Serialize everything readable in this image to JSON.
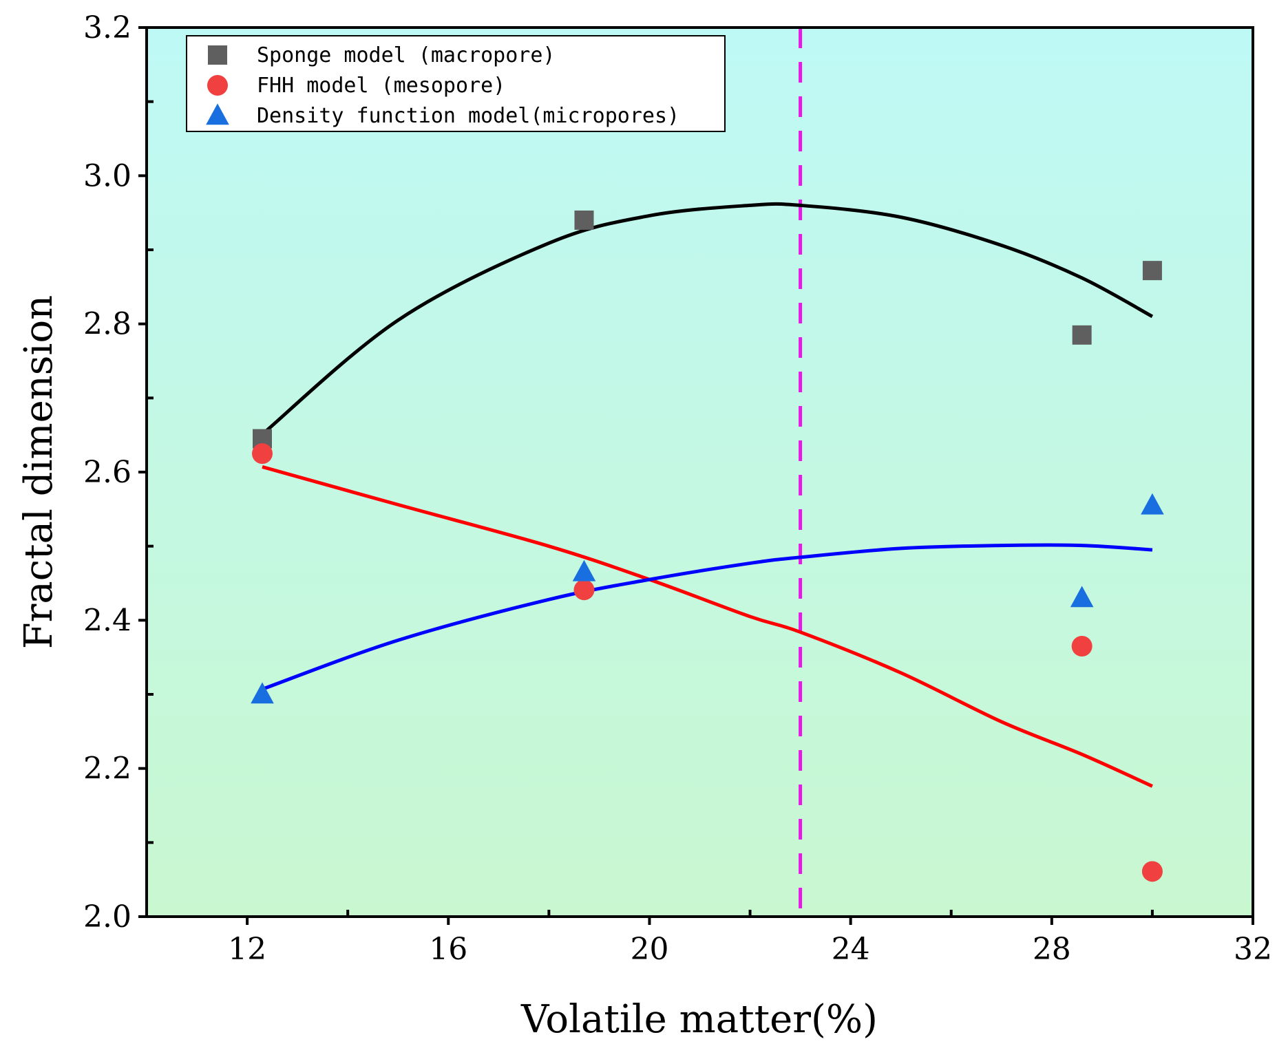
{
  "chart_data": {
    "type": "scatter",
    "title": "",
    "xlabel": "Volatile matter(%)",
    "ylabel": "Fractal dimension",
    "xlim": [
      10,
      32
    ],
    "ylim": [
      2.0,
      3.2
    ],
    "x_ticks": [
      12,
      16,
      20,
      24,
      28,
      32
    ],
    "x_tick_labels": [
      "12",
      "16",
      "20",
      "24",
      "28",
      "32"
    ],
    "x_minor_ticks": [
      14,
      18,
      22,
      26,
      30
    ],
    "y_ticks": [
      2.0,
      2.2,
      2.4,
      2.6,
      2.8,
      3.0,
      3.2
    ],
    "y_tick_labels": [
      "2.0",
      "2.2",
      "2.4",
      "2.6",
      "2.8",
      "3.0",
      "3.2"
    ],
    "y_minor_ticks": [
      2.1,
      2.3,
      2.5,
      2.7,
      2.9,
      3.1
    ],
    "grid": false,
    "legend_position": "top-left",
    "background_gradient": {
      "top": "#bff9f6",
      "bottom": "#c8f7d0"
    },
    "vline": {
      "x": 23.0,
      "color": "#e619e6",
      "style": "dashed"
    },
    "series": [
      {
        "name": "Sponge model (macropore)",
        "marker": "square",
        "marker_color": "#5f5f5f",
        "fit_color": "#000000",
        "x": [
          12.3,
          18.7,
          28.6,
          30.0
        ],
        "y": [
          2.645,
          2.94,
          2.785,
          2.872
        ],
        "fit": {
          "x": [
            12.3,
            15.0,
            18.0,
            20.0,
            22.0,
            23.0,
            25.0,
            27.0,
            28.6,
            30.0
          ],
          "y": [
            2.651,
            2.805,
            2.909,
            2.946,
            2.96,
            2.96,
            2.944,
            2.906,
            2.862,
            2.81
          ]
        }
      },
      {
        "name": "FHH model (mesopore)",
        "marker": "circle",
        "marker_color": "#f04040",
        "fit_color": "#ff0000",
        "x": [
          12.3,
          18.7,
          28.6,
          30.0
        ],
        "y": [
          2.625,
          2.441,
          2.365,
          2.061
        ],
        "fit": {
          "x": [
            12.3,
            15.0,
            18.0,
            20.0,
            22.0,
            23.0,
            25.0,
            27.0,
            28.6,
            30.0
          ],
          "y": [
            2.607,
            2.556,
            2.5,
            2.455,
            2.405,
            2.384,
            2.329,
            2.263,
            2.219,
            2.176
          ]
        }
      },
      {
        "name": "Density function model(micropores)",
        "marker": "triangle",
        "marker_color": "#1a6fe0",
        "fit_color": "#0000ff",
        "x": [
          12.3,
          18.7,
          28.6,
          30.0
        ],
        "y": [
          2.3,
          2.465,
          2.43,
          2.555
        ],
        "fit": {
          "x": [
            12.3,
            15.0,
            18.0,
            20.0,
            22.0,
            23.0,
            25.0,
            27.0,
            28.6,
            30.0
          ],
          "y": [
            2.307,
            2.373,
            2.428,
            2.455,
            2.477,
            2.485,
            2.497,
            2.501,
            2.501,
            2.495
          ]
        }
      }
    ]
  }
}
